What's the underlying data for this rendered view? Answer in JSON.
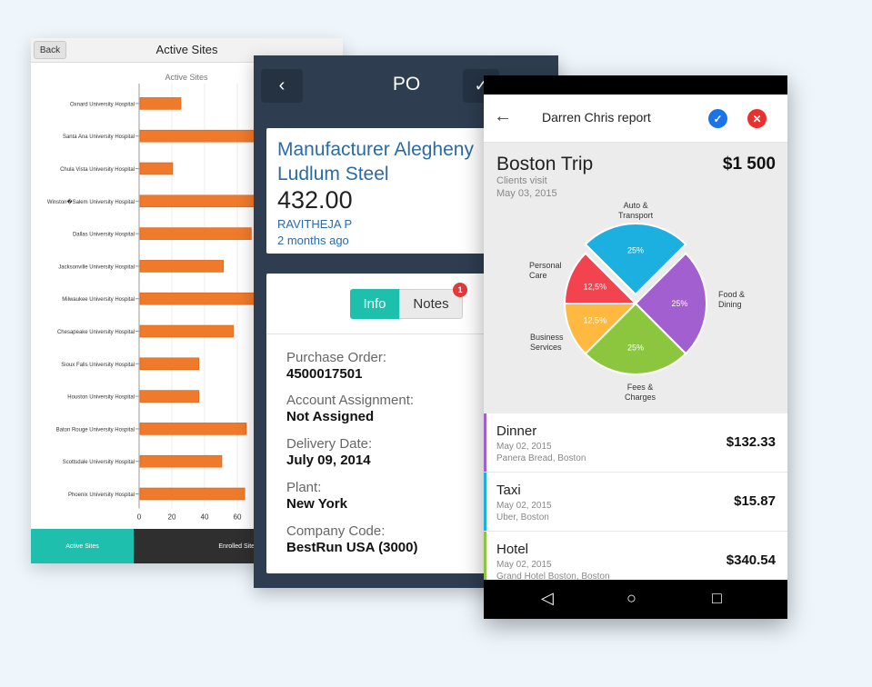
{
  "active_sites_card": {
    "back_label": "Back",
    "title": "Active Sites",
    "tabs": [
      "Active Sites",
      "Enrolled Sites"
    ],
    "chart_data": {
      "type": "bar",
      "orientation": "horizontal",
      "title": "Active Sites",
      "categories": [
        "Oxnard University Hospital",
        "Santa Ana University Hospital",
        "Chula Vista University Hospital",
        "Winston�Salem University Hospital",
        "Dallas University Hospital",
        "Jacksonville University Hospital",
        "Milwaukee University Hospital",
        "Chesapeake University Hospital",
        "Sioux Falls University Hospital",
        "Houston University Hospital",
        "Baton Rouge University Hospital",
        "Scottsdale University Hospital",
        "Phoenix University Hospital"
      ],
      "values": [
        25,
        72,
        20,
        70,
        68,
        51,
        73,
        57,
        36,
        36,
        65,
        50,
        64
      ],
      "x_ticks": [
        "0",
        "20",
        "40",
        "60"
      ],
      "xlim": [
        0,
        80
      ],
      "bar_color": "#f07a2c",
      "grid": true
    }
  },
  "po_card": {
    "title": "PO",
    "back_icon": "chevron-left-icon",
    "vendor": "Manufacturer Alegheny\nLudlum Steel",
    "amount": "432.00",
    "user": "RAVITHEJA P",
    "time": "2 months ago",
    "segments": {
      "info": "Info",
      "notes": "Notes",
      "notes_badge": "1"
    },
    "fields": [
      {
        "label": "Purchase Order:",
        "value": "4500017501"
      },
      {
        "label": "Account Assignment:",
        "value": "Not Assigned"
      },
      {
        "label": "Delivery Date:",
        "value": "July 09, 2014"
      },
      {
        "label": "Plant:",
        "value": "New York"
      },
      {
        "label": "Company Code:",
        "value": "BestRun USA (3000)"
      }
    ]
  },
  "report_card": {
    "title": "Darren Chris report",
    "trip": {
      "name": "Boston Trip",
      "total": "$1 500",
      "subtitle": "Clients visit",
      "date": "May 03, 2015"
    },
    "pie_chart": {
      "type": "pie",
      "slices": [
        {
          "label": "Auto & Transport",
          "value": 25,
          "display": "25%",
          "color": "#1bb0e0"
        },
        {
          "label": "Food & Dining",
          "value": 25,
          "display": "25%",
          "color": "#a25fcf"
        },
        {
          "label": "Fees & Charges",
          "value": 25,
          "display": "25%",
          "color": "#8cc63f"
        },
        {
          "label": "Business Services",
          "value": 12.5,
          "display": "12,5%",
          "color": "#ffb940"
        },
        {
          "label": "Personal Care",
          "value": 12.5,
          "display": "12,5%",
          "color": "#f2434f"
        }
      ],
      "category_labels": {
        "auto": "Auto &\nTransport",
        "food": "Food &\nDining",
        "fees": "Fees &\nCharges",
        "business": "Business\nServices",
        "personal": "Personal\nCare"
      }
    },
    "expenses": [
      {
        "name": "Dinner",
        "date": "May 02, 2015",
        "place": "Panera Bread, Boston",
        "amount": "$132.33",
        "color": "#a25fcf"
      },
      {
        "name": "Taxi",
        "date": "May 02, 2015",
        "place": "Uber, Boston",
        "amount": "$15.87",
        "color": "#1bb0e0"
      },
      {
        "name": "Hotel",
        "date": "May 02, 2015",
        "place": "Grand Hotel Boston, Boston",
        "amount": "$340.54",
        "color": "#8cc63f"
      }
    ],
    "nav": {
      "back": "◁",
      "home": "○",
      "recents": "□"
    }
  }
}
